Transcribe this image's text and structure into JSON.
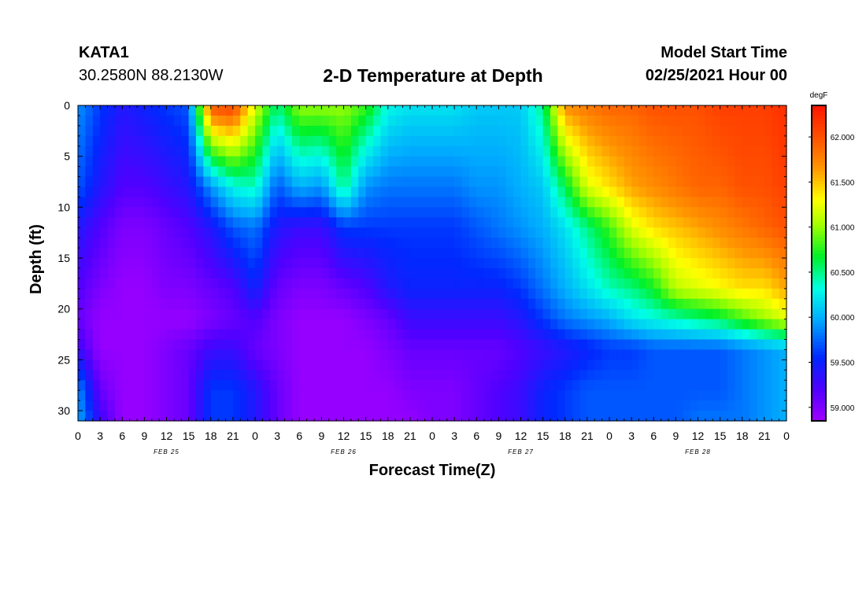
{
  "header": {
    "station_id": "KATA1",
    "station_coords": "30.2580N 88.2130W",
    "title": "2-D Temperature at Depth",
    "model_label": "Model Start Time",
    "model_start": "02/25/2021 Hour 00"
  },
  "chart_data": {
    "type": "heatmap",
    "title": "2-D Temperature at Depth",
    "xlabel": "Forecast Time(Z)",
    "ylabel": "Depth (ft)",
    "x_tick_labels": [
      "0",
      "3",
      "6",
      "9",
      "12",
      "15",
      "18",
      "21",
      "0",
      "3",
      "6",
      "9",
      "12",
      "15",
      "18",
      "21",
      "0",
      "3",
      "6",
      "9",
      "12",
      "15",
      "18",
      "21",
      "0",
      "3",
      "6",
      "9",
      "12",
      "15",
      "18",
      "21",
      "0"
    ],
    "x_range_hours": [
      0,
      96
    ],
    "date_labels": [
      {
        "label": "FEB 25",
        "hour": 12
      },
      {
        "label": "FEB 26",
        "hour": 36
      },
      {
        "label": "FEB 27",
        "hour": 60
      },
      {
        "label": "FEB 28",
        "hour": 84
      }
    ],
    "y_tick_labels": [
      "0",
      "5",
      "10",
      "15",
      "20",
      "25",
      "30"
    ],
    "y_range_ft": [
      0,
      31
    ],
    "colorbar": {
      "unit": "degF",
      "min": 58.85,
      "max": 62.35,
      "tick_values": [
        59.0,
        59.5,
        60.0,
        60.5,
        61.0,
        61.5,
        62.0
      ],
      "tick_labels": [
        "59.000",
        "59.500",
        "60.000",
        "60.500",
        "61.000",
        "61.500",
        "62.000"
      ]
    },
    "depth_levels_ft": [
      0,
      8,
      12,
      18,
      21,
      24,
      28,
      31
    ],
    "time_hours": [
      0,
      3,
      6,
      9,
      12,
      15,
      18,
      21,
      24,
      27,
      30,
      33,
      36,
      39,
      42,
      45,
      48,
      51,
      54,
      57,
      60,
      63,
      66,
      69,
      72,
      75,
      78,
      81,
      84,
      87,
      90,
      93,
      96
    ],
    "temperature_degF": [
      [
        59.9,
        59.6,
        59.4,
        59.5,
        59.6,
        59.7,
        62.0,
        62.1,
        61.2,
        60.5,
        61.0,
        61.0,
        61.0,
        60.8,
        60.3,
        60.2,
        60.2,
        60.2,
        60.1,
        60.1,
        60.1,
        60.5,
        61.7,
        61.8,
        61.9,
        61.9,
        62.0,
        62.0,
        62.0,
        62.1,
        62.1,
        62.1,
        62.2
      ],
      [
        59.7,
        59.4,
        59.2,
        59.2,
        59.3,
        59.4,
        59.9,
        60.3,
        60.4,
        59.7,
        60.0,
        59.9,
        60.5,
        59.9,
        59.8,
        59.8,
        59.8,
        59.8,
        59.9,
        59.9,
        60.0,
        60.1,
        60.6,
        61.2,
        61.4,
        61.6,
        61.7,
        61.8,
        61.9,
        61.9,
        62.0,
        62.0,
        62.1
      ],
      [
        59.4,
        59.2,
        59.0,
        59.0,
        59.1,
        59.2,
        59.4,
        59.7,
        59.8,
        59.4,
        59.3,
        59.3,
        59.6,
        59.6,
        59.6,
        59.6,
        59.6,
        59.6,
        59.7,
        59.8,
        59.9,
        60.0,
        60.2,
        60.5,
        60.8,
        61.2,
        61.4,
        61.5,
        61.6,
        61.7,
        61.8,
        61.9,
        62.0
      ],
      [
        59.2,
        59.0,
        58.9,
        58.9,
        59.0,
        59.0,
        59.1,
        59.2,
        59.5,
        59.1,
        59.0,
        59.0,
        59.1,
        59.2,
        59.4,
        59.5,
        59.5,
        59.5,
        59.5,
        59.5,
        59.6,
        59.8,
        60.0,
        60.2,
        60.4,
        60.5,
        60.7,
        61.1,
        61.2,
        61.3,
        61.4,
        61.4,
        61.6
      ],
      [
        59.1,
        58.9,
        58.9,
        58.9,
        58.9,
        58.9,
        59.0,
        59.1,
        59.2,
        59.0,
        58.9,
        58.9,
        58.9,
        59.0,
        59.1,
        59.3,
        59.3,
        59.3,
        59.3,
        59.3,
        59.4,
        59.6,
        59.8,
        59.9,
        60.0,
        60.2,
        60.3,
        60.4,
        60.5,
        60.6,
        60.8,
        61.0,
        61.2
      ],
      [
        59.3,
        58.9,
        58.9,
        58.9,
        59.0,
        59.1,
        59.3,
        59.3,
        59.1,
        59.0,
        58.9,
        58.9,
        58.9,
        58.9,
        59.0,
        59.1,
        59.1,
        59.1,
        59.1,
        59.1,
        59.2,
        59.3,
        59.4,
        59.5,
        59.6,
        59.6,
        59.7,
        59.7,
        59.7,
        59.7,
        59.8,
        59.9,
        60.0
      ],
      [
        59.9,
        59.1,
        58.9,
        58.9,
        59.0,
        59.1,
        59.6,
        59.6,
        59.4,
        59.1,
        58.9,
        58.9,
        58.9,
        58.9,
        58.9,
        59.0,
        59.0,
        59.0,
        59.1,
        59.2,
        59.3,
        59.5,
        59.6,
        59.7,
        59.7,
        59.7,
        59.7,
        59.7,
        59.7,
        59.7,
        59.8,
        59.9,
        60.0
      ],
      [
        60.0,
        59.3,
        58.9,
        58.9,
        59.0,
        59.1,
        59.6,
        59.6,
        59.4,
        59.1,
        58.9,
        58.9,
        58.9,
        58.9,
        58.9,
        58.9,
        59.0,
        59.0,
        59.1,
        59.2,
        59.3,
        59.5,
        59.6,
        59.7,
        59.7,
        59.7,
        59.7,
        59.7,
        59.8,
        59.8,
        59.8,
        59.9,
        60.0
      ]
    ]
  }
}
